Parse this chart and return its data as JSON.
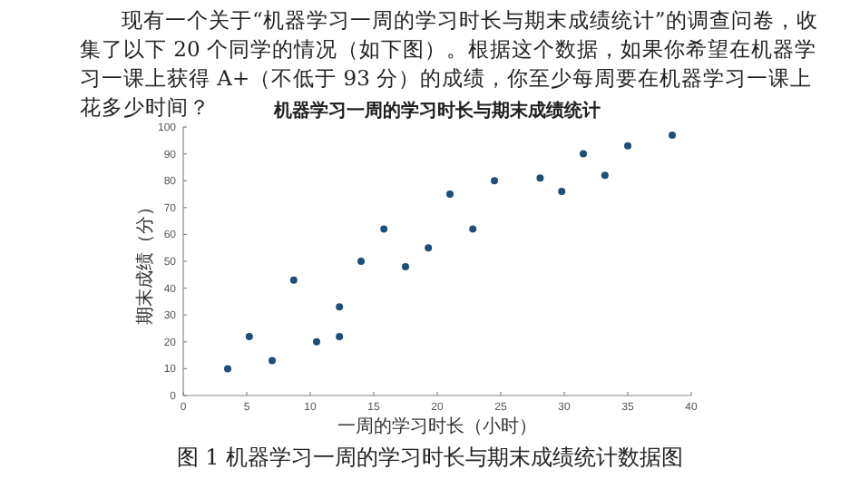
{
  "chart_data": {
    "type": "scatter",
    "title": "机器学习一周的学习时长与期末成绩统计",
    "xlabel": "一周的学习时长（小时）",
    "ylabel": "期末成绩（分）",
    "annotations": [
      "现有一个关于“机器学习一周的学习时长与期末成绩统计”的调查问卷，收集了以下 20 个同学的情况（如下图）。根据这个数据，如果你希望在机器学习一课上获得 A+（不低于 93 分）的成绩，你至少每周要在机器学习一课上花多少时间？",
      "图 1 机器学习一周的学习时长与期末成绩统计数据图"
    ],
    "x": [
      3.5,
      5.2,
      7,
      8.7,
      10.5,
      12.3,
      12.3,
      14,
      15.8,
      17.5,
      19.3,
      21,
      22.8,
      24.5,
      28.1,
      29.8,
      31.5,
      33.2,
      35,
      38.5
    ],
    "values": [
      10,
      22,
      13,
      43,
      20,
      22,
      33,
      50,
      62,
      48,
      55,
      75,
      62,
      80,
      81,
      76,
      90,
      82,
      93,
      97
    ],
    "color": "#1f4e79",
    "marker": "circle",
    "grid": false,
    "xlim": [
      0,
      40
    ],
    "xticks": [
      0,
      5,
      10,
      15,
      20,
      25,
      30,
      35,
      40
    ],
    "ylim": [
      0,
      100
    ],
    "yticks": [
      0,
      10,
      20,
      30,
      40,
      50,
      60,
      70,
      80,
      90,
      100
    ]
  }
}
